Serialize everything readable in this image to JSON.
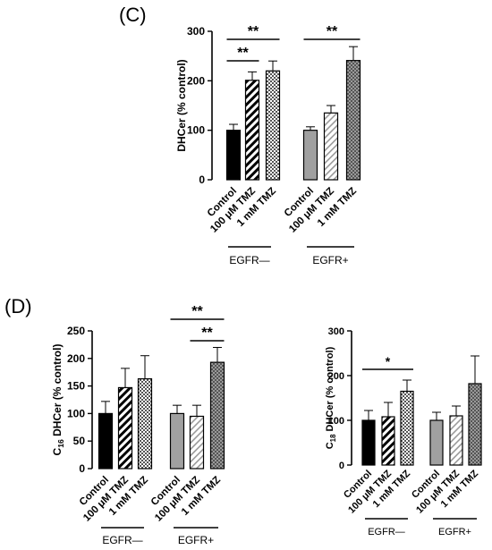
{
  "panels": {
    "c_label": "(C)",
    "d_label": "(D)"
  },
  "colors": {
    "control_egfr_neg": "#000000",
    "control_egfr_pos": "#a0a0a0",
    "tmz_1mm_egfr_pos": "#7f7f7f",
    "hatch": "#000000"
  },
  "chart_data": [
    {
      "id": "C",
      "type": "bar",
      "ylabel": "DHCer (% control)",
      "ylim": [
        0,
        300
      ],
      "yticks": [
        0,
        100,
        200,
        300
      ],
      "categories": [
        "Control",
        "100 μM TMZ",
        "1 mM TMZ"
      ],
      "groups": [
        "EGFR—",
        "EGFR+"
      ],
      "series": [
        {
          "group": "EGFR—",
          "values": [
            100,
            201,
            220
          ],
          "errors": [
            12,
            17,
            20
          ]
        },
        {
          "group": "EGFR+",
          "values": [
            100,
            135,
            241
          ],
          "errors": [
            7,
            15,
            28
          ]
        }
      ],
      "significance": [
        {
          "group": "EGFR—",
          "from": "Control",
          "to": "100 μM TMZ",
          "label": "**"
        },
        {
          "group": "EGFR—",
          "from": "Control",
          "to": "1 mM TMZ",
          "label": "**"
        },
        {
          "group": "EGFR+",
          "from": "Control",
          "to": "1 mM TMZ",
          "label": "**"
        }
      ]
    },
    {
      "id": "D-left",
      "type": "bar",
      "ylabel_main": "C",
      "ylabel_sub": "16",
      "ylabel_rest": " DHCer (% control)",
      "ylim": [
        0,
        250
      ],
      "yticks": [
        0,
        50,
        100,
        150,
        200,
        250
      ],
      "categories": [
        "Control",
        "100 μM TMZ",
        "1 mM TMZ"
      ],
      "groups": [
        "EGFR—",
        "EGFR+"
      ],
      "series": [
        {
          "group": "EGFR—",
          "values": [
            100,
            147,
            163
          ],
          "errors": [
            22,
            35,
            42
          ]
        },
        {
          "group": "EGFR+",
          "values": [
            100,
            95,
            193
          ],
          "errors": [
            15,
            20,
            27
          ]
        }
      ],
      "significance": [
        {
          "group": "EGFR+",
          "from": "Control",
          "to": "1 mM TMZ",
          "label": "**"
        },
        {
          "group": "EGFR+",
          "from": "100 μM TMZ",
          "to": "1 mM TMZ",
          "label": "**"
        }
      ]
    },
    {
      "id": "D-right",
      "type": "bar",
      "ylabel_main": "C",
      "ylabel_sub": "18",
      "ylabel_rest": " DHCer (% control)",
      "ylim": [
        0,
        300
      ],
      "yticks": [
        0,
        100,
        200,
        300
      ],
      "categories": [
        "Control",
        "100 μM TMZ",
        "1 mM TMZ"
      ],
      "groups": [
        "EGFR—",
        "EGFR+"
      ],
      "series": [
        {
          "group": "EGFR—",
          "values": [
            100,
            108,
            165
          ],
          "errors": [
            22,
            32,
            25
          ]
        },
        {
          "group": "EGFR+",
          "values": [
            100,
            110,
            182
          ],
          "errors": [
            18,
            22,
            62
          ]
        }
      ],
      "significance": [
        {
          "group": "EGFR—",
          "from": "Control",
          "to": "1 mM TMZ",
          "label": "*"
        }
      ]
    }
  ]
}
